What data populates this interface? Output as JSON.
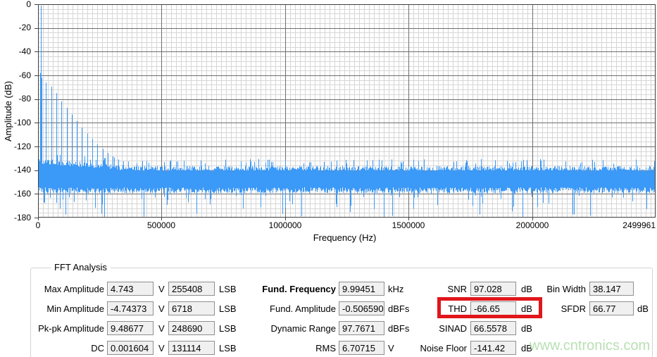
{
  "chart_data": {
    "type": "line",
    "subtype": "fft-spectrum",
    "title": "",
    "xlabel": "Frequency (Hz)",
    "ylabel": "Amplitude (dB)",
    "xlim": [
      0,
      2499961
    ],
    "ylim": [
      -180,
      0
    ],
    "x_tick_values": [
      0,
      500000,
      1000000,
      1500000,
      2000000,
      2499961
    ],
    "x_tick_labels": [
      "0",
      "500000",
      "1000000",
      "1500000",
      "2000000",
      "2499961"
    ],
    "y_tick_values": [
      0,
      -20,
      -40,
      -60,
      -80,
      -100,
      -120,
      -140,
      -160,
      -180
    ],
    "y_tick_labels": [
      "0",
      "-20",
      "-40",
      "-60",
      "-80",
      "-100",
      "-120",
      "-140",
      "-160",
      "-180"
    ],
    "grid": {
      "minor_per_major_x": 25,
      "minor_per_major_y": 5,
      "minor_color": "#d6d6d6",
      "major_color": "#6e6e6e",
      "border_color": "#3f3f3f"
    },
    "series_color": "#3b99f7",
    "legend": false,
    "fundamental": {
      "frequency_hz": 9994.51,
      "amplitude_dbfs": -0.50659
    },
    "spikes": [
      {
        "f": 8550,
        "a": -58
      },
      {
        "f": 9994,
        "a": -1.2
      },
      {
        "f": 14250,
        "a": -62
      },
      {
        "f": 32200,
        "a": -66
      },
      {
        "f": 53000,
        "a": -69.5
      },
      {
        "f": 73800,
        "a": -75
      },
      {
        "f": 94600,
        "a": -82
      },
      {
        "f": 115500,
        "a": -87.5
      },
      {
        "f": 136300,
        "a": -93
      },
      {
        "f": 157100,
        "a": -98.5
      },
      {
        "f": 177900,
        "a": -104
      },
      {
        "f": 198700,
        "a": -109
      },
      {
        "f": 219500,
        "a": -113.5
      },
      {
        "f": 240300,
        "a": -118
      },
      {
        "f": 261100,
        "a": -122
      },
      {
        "f": 281900,
        "a": -125.5
      },
      {
        "f": 302800,
        "a": -128.5
      },
      {
        "f": 323600,
        "a": -131
      },
      {
        "f": 344400,
        "a": -132.5
      },
      {
        "f": 365200,
        "a": -134
      }
    ],
    "noise_floor": {
      "band_top_db": -138,
      "band_bottom_db": -157,
      "spike_max_db": -131,
      "spike_min_db": -180,
      "reported_db": -141.42
    }
  },
  "panel": {
    "title": "FFT Analysis",
    "watermark": "www.cntronics.com",
    "highlight_color": "#e0161b",
    "fields": {
      "max_amplitude": {
        "label": "Max Amplitude",
        "value": "4.743",
        "unit": "V",
        "lsb_value": "255408",
        "lsb_unit": "LSB"
      },
      "min_amplitude": {
        "label": "Min Amplitude",
        "value": "-4.74373",
        "unit": "V",
        "lsb_value": "6718",
        "lsb_unit": "LSB"
      },
      "pkpk_amplitude": {
        "label": "Pk-pk Amplitude",
        "value": "9.48677",
        "unit": "V",
        "lsb_value": "248690",
        "lsb_unit": "LSB"
      },
      "dc": {
        "label": "DC",
        "value": "0.001604",
        "unit": "V",
        "lsb_value": "131114",
        "lsb_unit": "LSB"
      },
      "fund_frequency": {
        "label": "Fund. Frequency",
        "value": "9.99451",
        "unit": "kHz"
      },
      "fund_amplitude": {
        "label": "Fund. Amplitude",
        "value": "-0.506590",
        "unit": "dBFs"
      },
      "dynamic_range": {
        "label": "Dynamic Range",
        "value": "97.7671",
        "unit": "dBFs"
      },
      "rms": {
        "label": "RMS",
        "value": "6.70715",
        "unit": "V"
      },
      "snr": {
        "label": "SNR",
        "value": "97.028",
        "unit": "dB"
      },
      "thd": {
        "label": "THD",
        "value": "-66.65",
        "unit": "dB",
        "highlighted": true
      },
      "sinad": {
        "label": "SINAD",
        "value": "66.5578",
        "unit": "dB"
      },
      "noise_floor": {
        "label": "Noise Floor",
        "value": "-141.42",
        "unit": "dB"
      },
      "bin_width": {
        "label": "Bin Width",
        "value": "38.147",
        "unit": ""
      },
      "sfdr": {
        "label": "SFDR",
        "value": "66.77",
        "unit": "dB"
      }
    }
  }
}
